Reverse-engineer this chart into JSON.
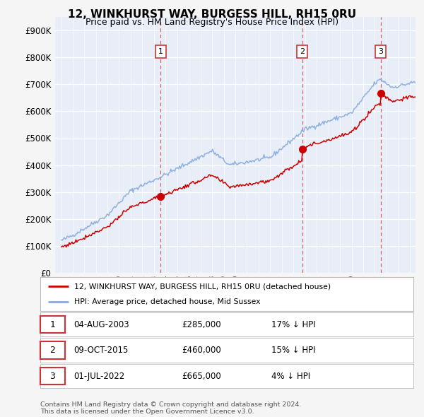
{
  "title": "12, WINKHURST WAY, BURGESS HILL, RH15 0RU",
  "subtitle": "Price paid vs. HM Land Registry's House Price Index (HPI)",
  "background_color": "#f5f5f5",
  "plot_bg_color": "#e8eef8",
  "y_ticks": [
    0,
    100000,
    200000,
    300000,
    400000,
    500000,
    600000,
    700000,
    800000,
    900000
  ],
  "y_tick_labels": [
    "£0",
    "£100K",
    "£200K",
    "£300K",
    "£400K",
    "£500K",
    "£600K",
    "£700K",
    "£800K",
    "£900K"
  ],
  "ylim": [
    0,
    950000
  ],
  "sale_dates_num": [
    2003.58,
    2015.75,
    2022.5
  ],
  "sale_prices": [
    285000,
    460000,
    665000
  ],
  "sale_labels": [
    "1",
    "2",
    "3"
  ],
  "red_line_color": "#cc0000",
  "blue_line_color": "#88aadd",
  "legend_label_red": "12, WINKHURST WAY, BURGESS HILL, RH15 0RU (detached house)",
  "legend_label_blue": "HPI: Average price, detached house, Mid Sussex",
  "table_data": [
    {
      "num": "1",
      "date": "04-AUG-2003",
      "price": "£285,000",
      "hpi": "17% ↓ HPI"
    },
    {
      "num": "2",
      "date": "09-OCT-2015",
      "price": "£460,000",
      "hpi": "15% ↓ HPI"
    },
    {
      "num": "3",
      "date": "01-JUL-2022",
      "price": "£665,000",
      "hpi": "4% ↓ HPI"
    }
  ],
  "footer": "Contains HM Land Registry data © Crown copyright and database right 2024.\nThis data is licensed under the Open Government Licence v3.0.",
  "x_start_year": 1995,
  "x_end_year": 2025
}
